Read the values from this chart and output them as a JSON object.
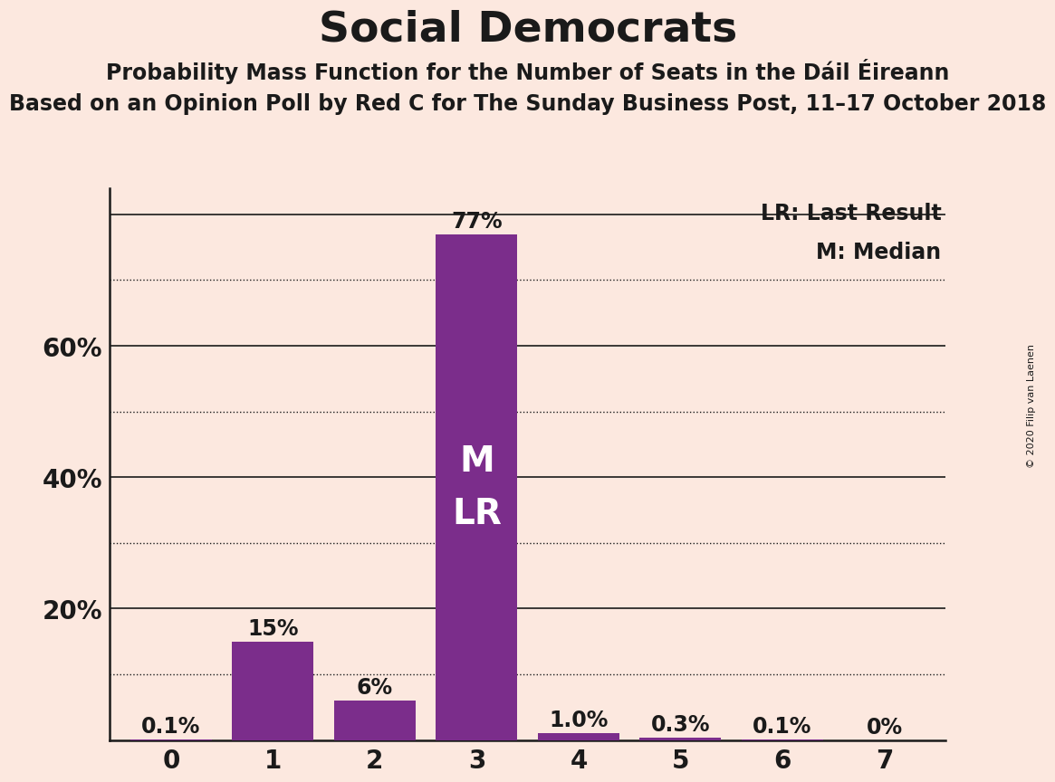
{
  "title": "Social Democrats",
  "subtitle1": "Probability Mass Function for the Number of Seats in the Dáil Éireann",
  "subtitle2": "Based on an Opinion Poll by Red C for The Sunday Business Post, 11–17 October 2018",
  "copyright": "© 2020 Filip van Laenen",
  "categories": [
    0,
    1,
    2,
    3,
    4,
    5,
    6,
    7
  ],
  "values": [
    0.001,
    0.15,
    0.06,
    0.77,
    0.01,
    0.003,
    0.001,
    0.0
  ],
  "labels": [
    "0.1%",
    "15%",
    "6%",
    "77%",
    "1.0%",
    "0.3%",
    "0.1%",
    "0%"
  ],
  "bar_color": "#7B2D8B",
  "background_color": "#FCE8DF",
  "text_color": "#1a1a1a",
  "yticks_solid": [
    0.2,
    0.4,
    0.6,
    0.8
  ],
  "ytick_positions": [
    0.0,
    0.2,
    0.4,
    0.6
  ],
  "ytick_labels": [
    "",
    "20%",
    "40%",
    "60%"
  ],
  "grid_dotted": [
    0.1,
    0.3,
    0.5,
    0.7
  ],
  "median_bar": 3,
  "lr_bar": 3,
  "legend_lr": "LR: Last Result",
  "legend_m": "M: Median",
  "title_fontsize": 34,
  "subtitle1_fontsize": 17,
  "subtitle2_fontsize": 17,
  "label_fontsize": 17,
  "tick_fontsize": 20,
  "inside_label_fontsize": 28,
  "bar_label_white_color": "#FFFFFF",
  "bar_label_dark_color": "#1a1a1a",
  "legend_fontsize": 17,
  "copyright_fontsize": 8,
  "ylim_max": 0.84
}
